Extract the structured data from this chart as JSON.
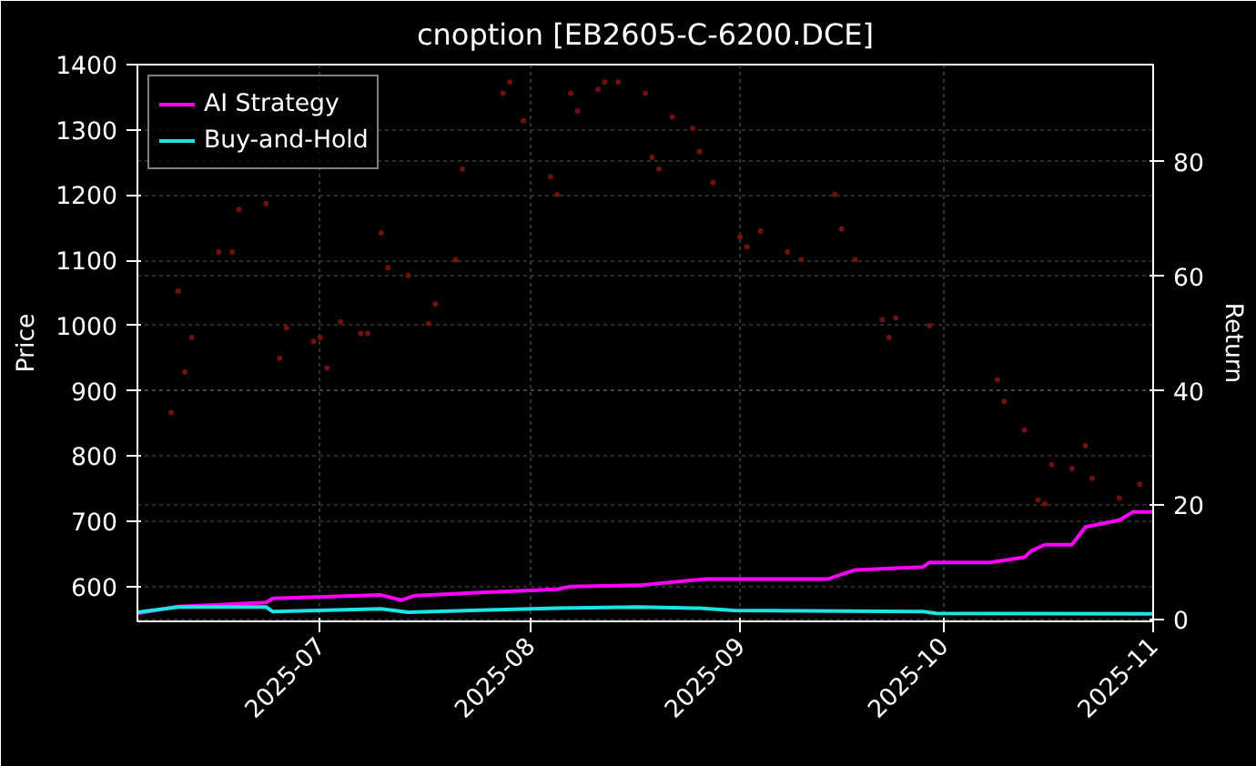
{
  "chart_data": {
    "type": "line",
    "title": "cnoption [EB2605-C-6200.DCE]",
    "ylabel": "Price",
    "y2label": "Return",
    "xlim": [
      "2025-06-04",
      "2025-11-01"
    ],
    "xticks": [
      "2025-07",
      "2025-08",
      "2025-09",
      "2025-10",
      "2025-11"
    ],
    "ylim": [
      547,
      1400
    ],
    "yticks": [
      600,
      700,
      800,
      900,
      1000,
      1100,
      1200,
      1300,
      1400
    ],
    "y2lim": [
      -0.3,
      97
    ],
    "y2ticks": [
      0,
      20,
      40,
      60,
      80
    ],
    "grid": true,
    "legend": "top left",
    "line_style": "solid",
    "series": [
      {
        "type": "scatter",
        "color": "#701010",
        "x": [
          "2025-06-09",
          "2025-06-10",
          "2025-06-11",
          "2025-06-12",
          "2025-06-16",
          "2025-06-18",
          "2025-06-19",
          "2025-06-23",
          "2025-06-25",
          "2025-06-26",
          "2025-06-30",
          "2025-07-01",
          "2025-07-02",
          "2025-07-04",
          "2025-07-07",
          "2025-07-08",
          "2025-07-10",
          "2025-07-11",
          "2025-07-14",
          "2025-07-17",
          "2025-07-18",
          "2025-07-21",
          "2025-07-22",
          "2025-07-28",
          "2025-07-29",
          "2025-07-31",
          "2025-08-04",
          "2025-08-05",
          "2025-08-07",
          "2025-08-08",
          "2025-08-11",
          "2025-08-12",
          "2025-08-14",
          "2025-08-18",
          "2025-08-19",
          "2025-08-20",
          "2025-08-22",
          "2025-08-25",
          "2025-08-26",
          "2025-08-28",
          "2025-09-01",
          "2025-09-02",
          "2025-09-04",
          "2025-09-08",
          "2025-09-10",
          "2025-09-15",
          "2025-09-16",
          "2025-09-18",
          "2025-09-22",
          "2025-09-23",
          "2025-09-24",
          "2025-09-29",
          "2025-10-09",
          "2025-10-10",
          "2025-10-13",
          "2025-10-15",
          "2025-10-16",
          "2025-10-17",
          "2025-10-20",
          "2025-10-22",
          "2025-10-23",
          "2025-10-27",
          "2025-10-30"
        ],
        "values": [
          867,
          1053,
          929,
          982,
          1113,
          1113,
          1178,
          1187,
          950,
          997,
          976,
          982,
          935,
          1006,
          988,
          988,
          1142,
          1089,
          1077,
          1003,
          1033,
          1101,
          1240,
          1356,
          1373,
          1314,
          1228,
          1201,
          1356,
          1329,
          1362,
          1373,
          1373,
          1356,
          1258,
          1240,
          1320,
          1302,
          1267,
          1219,
          1136,
          1121,
          1145,
          1113,
          1101,
          1201,
          1148,
          1101,
          1009,
          982,
          1012,
          1000,
          917,
          884,
          840,
          733,
          727,
          787,
          781,
          816,
          766,
          736,
          757
        ]
      },
      {
        "axis": "y2",
        "name": "AI Strategy",
        "color": "#ff00ff",
        "x": [
          "2025-06-04",
          "2025-06-10",
          "2025-06-23",
          "2025-06-24",
          "2025-07-10",
          "2025-07-13",
          "2025-07-15",
          "2025-07-24",
          "2025-08-05",
          "2025-08-07",
          "2025-08-17",
          "2025-08-27",
          "2025-09-14",
          "2025-09-18",
          "2025-09-28",
          "2025-09-29",
          "2025-10-08",
          "2025-10-13",
          "2025-10-14",
          "2025-10-16",
          "2025-10-20",
          "2025-10-22",
          "2025-10-27",
          "2025-10-29",
          "2025-11-01"
        ],
        "values": [
          1.1,
          2.3,
          3.0,
          3.7,
          4.3,
          3.4,
          4.2,
          4.7,
          5.3,
          5.8,
          6.0,
          7.1,
          7.1,
          8.7,
          9.2,
          10.0,
          10.0,
          10.9,
          12.0,
          13.1,
          13.1,
          16.2,
          17.4,
          18.8,
          18.8
        ]
      },
      {
        "axis": "y2",
        "name": "Buy-and-Hold",
        "color": "#1ee3e3",
        "x": [
          "2025-06-04",
          "2025-06-10",
          "2025-06-23",
          "2025-06-24",
          "2025-07-10",
          "2025-07-14",
          "2025-08-05",
          "2025-08-17",
          "2025-08-26",
          "2025-08-31",
          "2025-09-28",
          "2025-09-30",
          "2025-11-01"
        ],
        "values": [
          1.3,
          2.2,
          2.2,
          1.4,
          1.9,
          1.3,
          2.0,
          2.2,
          2.0,
          1.6,
          1.4,
          1.1,
          1.0
        ]
      }
    ]
  }
}
